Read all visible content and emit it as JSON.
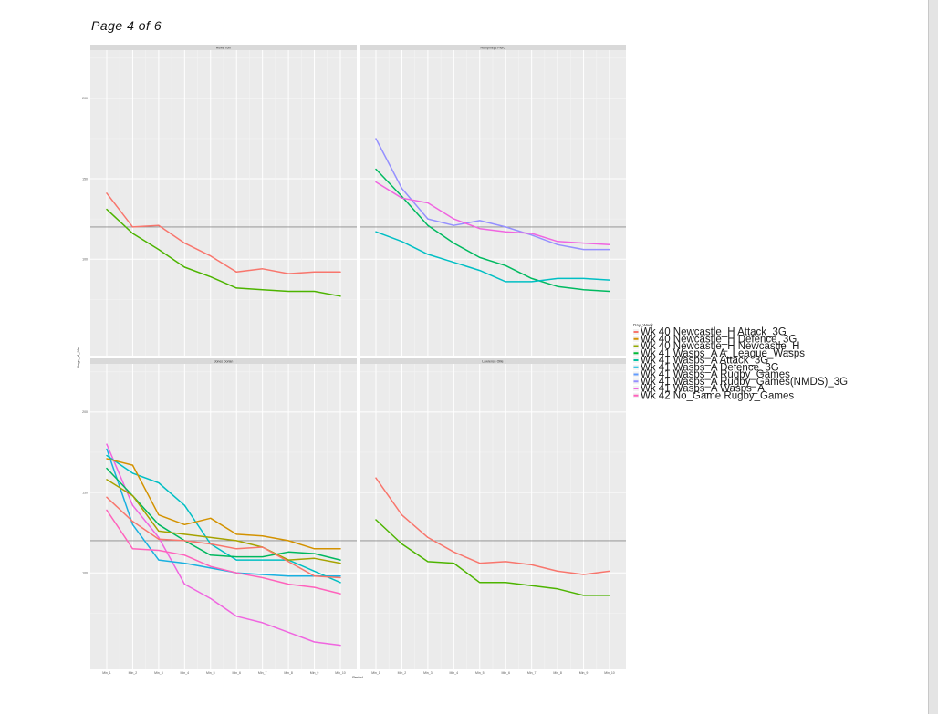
{
  "page": {
    "title": "Page 4 of 6"
  },
  "chart_data": {
    "type": "line",
    "xlabel": "Period",
    "ylabel": "Hage_M_Mw",
    "categories": [
      "Min_1",
      "Min_2",
      "Min_3",
      "Min_4",
      "Min_5",
      "Min_6",
      "Min_7",
      "Min_8",
      "Min_9",
      "Min_10"
    ],
    "ylim": [
      40,
      230
    ],
    "yticks": [
      100,
      150,
      200
    ],
    "hline": 120,
    "legend": {
      "title": "Day_Week",
      "position": "right",
      "entries": [
        {
          "label": "Wk 40 Newcastle_H Attack_3G",
          "color": "#f8766d"
        },
        {
          "label": "Wk 40 Newcastle_H Defence_3G",
          "color": "#d39200"
        },
        {
          "label": "Wk 40 Newcastle_H Newcastle_H",
          "color": "#93aa00"
        },
        {
          "label": "Wk 41 Wasps_A A_League_Wasps",
          "color": "#00ba38"
        },
        {
          "label": "Wk 41 Wasps_A Attack_3G",
          "color": "#00c19f"
        },
        {
          "label": "Wk 41 Wasps_A Defence_3G",
          "color": "#00b9e3"
        },
        {
          "label": "Wk 41 Wasps_A Rugby_Games",
          "color": "#619cff"
        },
        {
          "label": "Wk 41 Wasps_A Rugby_Games(NMDS)_3G",
          "color": "#9590ff"
        },
        {
          "label": "Wk 41 Wasps_A Wasps_A",
          "color": "#f065e0"
        },
        {
          "label": "Wk 42 No_Game Rugby_Games",
          "color": "#ff62bc"
        }
      ]
    },
    "panels": [
      {
        "title": "Howe Tom",
        "series": [
          {
            "name": "Wk 40 Newcastle_H Attack_3G",
            "color": "#f8766d",
            "values": [
              141,
              120,
              121,
              110,
              102,
              92,
              94,
              91,
              92,
              92
            ]
          },
          {
            "name": "Wk 41 Wasps_A A_League_Wasps",
            "color": "#4db400",
            "values": [
              131,
              116,
              106,
              95,
              89,
              82,
              81,
              80,
              80,
              77
            ]
          }
        ]
      },
      {
        "title": "Humphreys Piero",
        "series": [
          {
            "name": "Wk 41 Wasps_A Rugby_Games(NMDS)_3G",
            "color": "#9590ff",
            "values": [
              175,
              144,
              125,
              121,
              124,
              120,
              115,
              109,
              106,
              106
            ]
          },
          {
            "name": "Wk 41 Wasps_A Attack_3G",
            "color": "#00ba60",
            "values": [
              156,
              139,
              121,
              110,
              101,
              96,
              88,
              83,
              81,
              80
            ]
          },
          {
            "name": "Wk 41 Wasps_A Wasps_A",
            "color": "#f065e0",
            "values": [
              148,
              138,
              135,
              125,
              119,
              117,
              116,
              111,
              110,
              109
            ]
          },
          {
            "name": "Wk 41 Wasps_A Defence_3G",
            "color": "#00bfc4",
            "values": [
              117,
              111,
              103,
              98,
              93,
              86,
              86,
              88,
              88,
              87
            ]
          }
        ]
      },
      {
        "title": "Jones Dorian",
        "series": [
          {
            "name": "Wk 42 No_Game Rugby_Games",
            "color": "#f065e0",
            "values": [
              180,
              142,
              122,
              93,
              84,
              73,
              69,
              63,
              57,
              55
            ]
          },
          {
            "name": "Wk 41 Wasps_A Rugby_Games",
            "color": "#19b0e0",
            "values": [
              177,
              130,
              108,
              106,
              103,
              100,
              99,
              98,
              98,
              98
            ]
          },
          {
            "name": "Wk 41 Wasps_A Defence_3G",
            "color": "#00bfc4",
            "values": [
              173,
              162,
              156,
              142,
              118,
              108,
              108,
              108,
              101,
              94
            ]
          },
          {
            "name": "Wk 40 Newcastle_H Defence_3G",
            "color": "#d39200",
            "values": [
              171,
              167,
              136,
              130,
              134,
              124,
              123,
              120,
              115,
              115
            ]
          },
          {
            "name": "Wk 41 Wasps_A Attack_3G",
            "color": "#00b85f",
            "values": [
              165,
              148,
              130,
              120,
              111,
              110,
              110,
              113,
              112,
              108
            ]
          },
          {
            "name": "Wk 40 Newcastle_H Newcastle_H",
            "color": "#a6a200",
            "values": [
              158,
              148,
              126,
              124,
              122,
              120,
              116,
              108,
              109,
              106
            ]
          },
          {
            "name": "Wk 40 Newcastle_H Attack_3G",
            "color": "#f8766d",
            "values": [
              147,
              132,
              121,
              120,
              118,
              115,
              116,
              107,
              98,
              97
            ]
          },
          {
            "name": "Wk 41 Wasps_A Wasps_A",
            "color": "#ff62bc",
            "values": [
              139,
              115,
              114,
              111,
              104,
              100,
              97,
              93,
              91,
              87
            ]
          }
        ]
      },
      {
        "title": "Lawrence Ollie",
        "series": [
          {
            "name": "Wk 40 Newcastle_H Attack_3G",
            "color": "#f8766d",
            "values": [
              159,
              136,
              122,
              113,
              106,
              107,
              105,
              101,
              99,
              101
            ]
          },
          {
            "name": "Wk 41 Wasps_A A_League_Wasps",
            "color": "#4db400",
            "values": [
              133,
              118,
              107,
              106,
              94,
              94,
              92,
              90,
              86,
              86
            ]
          }
        ]
      }
    ]
  }
}
